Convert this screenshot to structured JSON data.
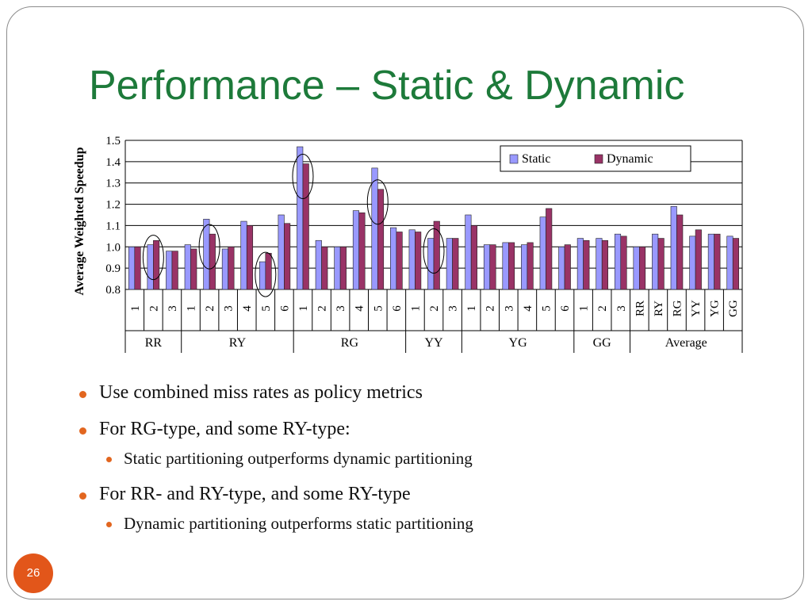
{
  "slide": {
    "title": "Performance – Static & Dynamic",
    "page_number": "26",
    "accent_color": "#e2561a",
    "title_color": "#1d7a3a"
  },
  "bullets": [
    {
      "level": 1,
      "text": "Use combined miss rates as policy metrics"
    },
    {
      "level": 1,
      "text": "For RG-type, and some RY-type:"
    },
    {
      "level": 2,
      "text": "Static partitioning outperforms dynamic partitioning"
    },
    {
      "level": 1,
      "text": "For RR- and RY-type, and some RY-type"
    },
    {
      "level": 2,
      "text": "Dynamic partitioning outperforms static partitioning"
    }
  ],
  "chart_data": {
    "type": "bar",
    "ylabel": "Average Weighted Speedup",
    "ylim": [
      0.8,
      1.5
    ],
    "yticks": [
      "0.8",
      "0.9",
      "1.0",
      "1.1",
      "1.2",
      "1.3",
      "1.4",
      "1.5"
    ],
    "grid": true,
    "legend_position": "top-right",
    "colors": {
      "Static": "#9999ff",
      "Dynamic": "#993366"
    },
    "groups": [
      {
        "name": "RR",
        "labels": [
          "1",
          "2",
          "3"
        ]
      },
      {
        "name": "RY",
        "labels": [
          "1",
          "2",
          "3",
          "4",
          "5",
          "6"
        ]
      },
      {
        "name": "RG",
        "labels": [
          "1",
          "2",
          "3",
          "4",
          "5",
          "6"
        ]
      },
      {
        "name": "YY",
        "labels": [
          "1",
          "2",
          "3"
        ]
      },
      {
        "name": "YG",
        "labels": [
          "1",
          "2",
          "3",
          "4",
          "5",
          "6"
        ]
      },
      {
        "name": "GG",
        "labels": [
          "1",
          "2",
          "3"
        ]
      },
      {
        "name": "Average",
        "labels": [
          "RR",
          "RY",
          "RG",
          "YY",
          "YG",
          "GG"
        ]
      }
    ],
    "series": [
      {
        "name": "Static",
        "values": [
          1.0,
          1.01,
          0.98,
          1.01,
          1.13,
          0.99,
          1.12,
          0.93,
          1.15,
          1.47,
          1.03,
          1.0,
          1.17,
          1.37,
          1.09,
          1.08,
          1.04,
          1.04,
          1.15,
          1.01,
          1.02,
          1.01,
          1.14,
          1.0,
          1.04,
          1.04,
          1.06,
          1.0,
          1.06,
          1.19,
          1.05,
          1.06,
          1.05
        ]
      },
      {
        "name": "Dynamic",
        "values": [
          1.0,
          1.03,
          0.98,
          0.99,
          1.06,
          1.0,
          1.1,
          0.97,
          1.11,
          1.39,
          1.0,
          1.0,
          1.16,
          1.27,
          1.07,
          1.07,
          1.12,
          1.04,
          1.1,
          1.01,
          1.02,
          1.02,
          1.18,
          1.01,
          1.03,
          1.03,
          1.05,
          1.0,
          1.04,
          1.15,
          1.08,
          1.06,
          1.04
        ]
      }
    ],
    "highlighted": [
      "RR-2",
      "RY-2",
      "RY-5",
      "RG-1",
      "RG-5",
      "YY-2"
    ]
  }
}
